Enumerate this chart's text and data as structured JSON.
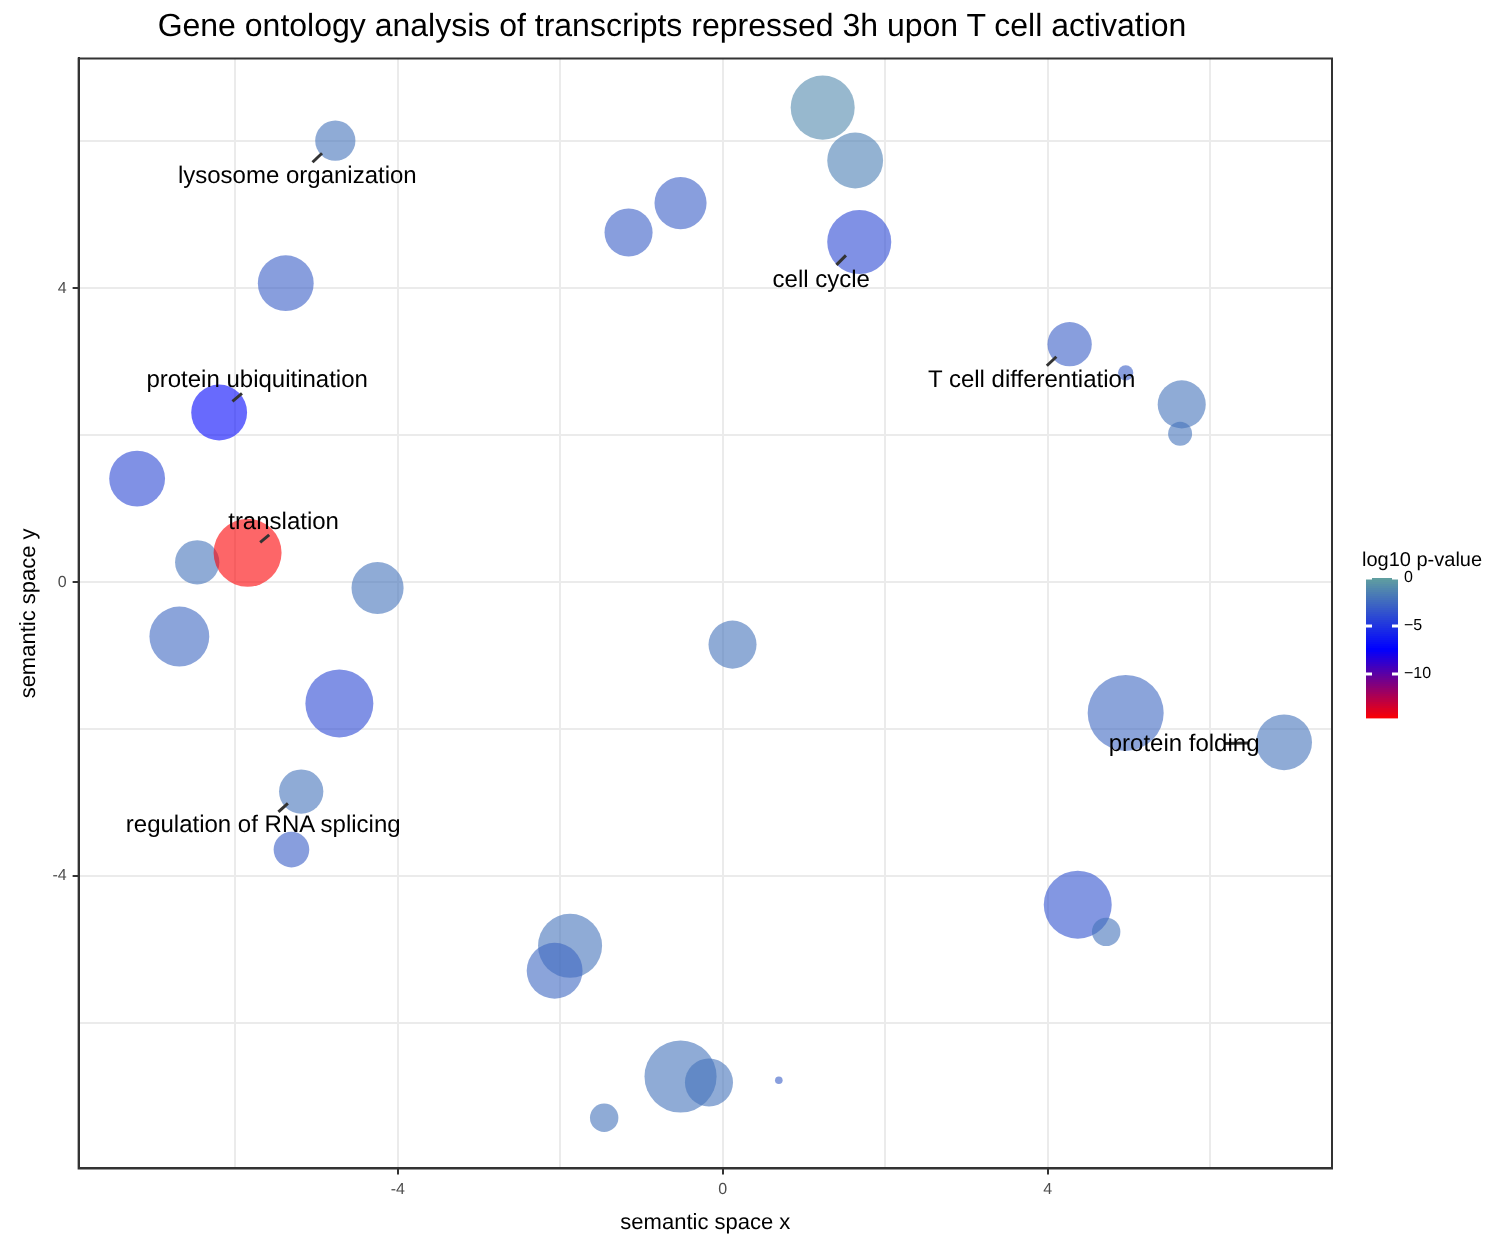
{
  "chart_data": {
    "type": "bubble",
    "title": "Gene ontology analysis of transcripts repressed 3h upon T cell activation",
    "xlabel": "semantic space x",
    "ylabel": "semantic space y",
    "clabel": "log10 p-value",
    "x": [
      -4.77,
      1.23,
      1.63,
      -0.52,
      -1.16,
      1.68,
      -5.38,
      4.27,
      4.96,
      5.65,
      5.63,
      -6.2,
      -7.21,
      -6.47,
      -5.85,
      -4.25,
      -6.69,
      0.12,
      -4.72,
      4.96,
      6.91,
      -5.19,
      -5.31,
      4.37,
      4.72,
      -1.88,
      -2.07,
      -0.52,
      -0.17,
      0.69,
      -1.46
    ],
    "values": [
      6.01,
      6.46,
      5.74,
      5.16,
      4.76,
      4.63,
      4.07,
      3.24,
      2.85,
      2.42,
      2.02,
      2.31,
      1.41,
      0.27,
      0.4,
      -0.08,
      -0.74,
      -0.85,
      -1.65,
      -1.78,
      -2.18,
      -2.85,
      -3.64,
      -4.39,
      -4.76,
      -4.95,
      -5.29,
      -6.73,
      -6.81,
      -6.78,
      -7.29
    ],
    "sizes": [
      0.28,
      0.71,
      0.54,
      0.47,
      0.4,
      0.71,
      0.54,
      0.34,
      0.04,
      0.4,
      0.1,
      0.54,
      0.54,
      0.34,
      0.8,
      0.47,
      0.62,
      0.4,
      0.8,
      1,
      0.54,
      0.34,
      0.22,
      0.8,
      0.14,
      0.71,
      0.54,
      0.9,
      0.4,
      0.01,
      0.14
    ],
    "cvalues": [
      -2,
      -1,
      -1.5,
      -3,
      -3,
      -4,
      -3,
      -3,
      -3,
      -2,
      -2,
      -7,
      -4,
      -2,
      -14.5,
      -2,
      -2.5,
      -2,
      -4,
      -2.5,
      -2,
      -2,
      -3,
      -3.5,
      -2,
      -2,
      -2.5,
      -2,
      -2,
      -3,
      -2
    ],
    "clim": [
      -14.6,
      0
    ],
    "cticks": [
      {
        "value": 0,
        "label": "0"
      },
      {
        "value": -5,
        "label": "−5"
      },
      {
        "value": -10,
        "label": "−10"
      }
    ],
    "xlim": [
      -7.93,
      7.5
    ],
    "ylim": [
      -7.98,
      7.13
    ],
    "xticks": [
      {
        "value": -6,
        "label": null
      },
      -4,
      {
        "value": -2,
        "label": null
      },
      0,
      {
        "value": 2,
        "label": null
      },
      4,
      {
        "value": 6,
        "label": null
      }
    ],
    "yticks": [
      {
        "value": -6,
        "label": null
      },
      -4,
      {
        "value": -2,
        "label": null
      },
      0,
      {
        "value": 2,
        "label": null
      },
      4,
      {
        "value": 6,
        "label": null
      }
    ],
    "grid": true,
    "annotations": [
      {
        "text": "lysosome organization",
        "x": -4.77,
        "y": 6.01
      },
      {
        "text": "cell cycle",
        "x": 1.68,
        "y": 4.63
      },
      {
        "text": "T cell differentiation",
        "x": 4.27,
        "y": 3.24
      },
      {
        "text": "protein ubiquitination",
        "x": -6.2,
        "y": 2.31
      },
      {
        "text": "translation",
        "x": -5.85,
        "y": 0.4
      },
      {
        "text": "regulation of RNA splicing",
        "x": -5.19,
        "y": -2.85
      },
      {
        "text": "protein folding",
        "x": 6.91,
        "y": -2.18
      }
    ]
  }
}
